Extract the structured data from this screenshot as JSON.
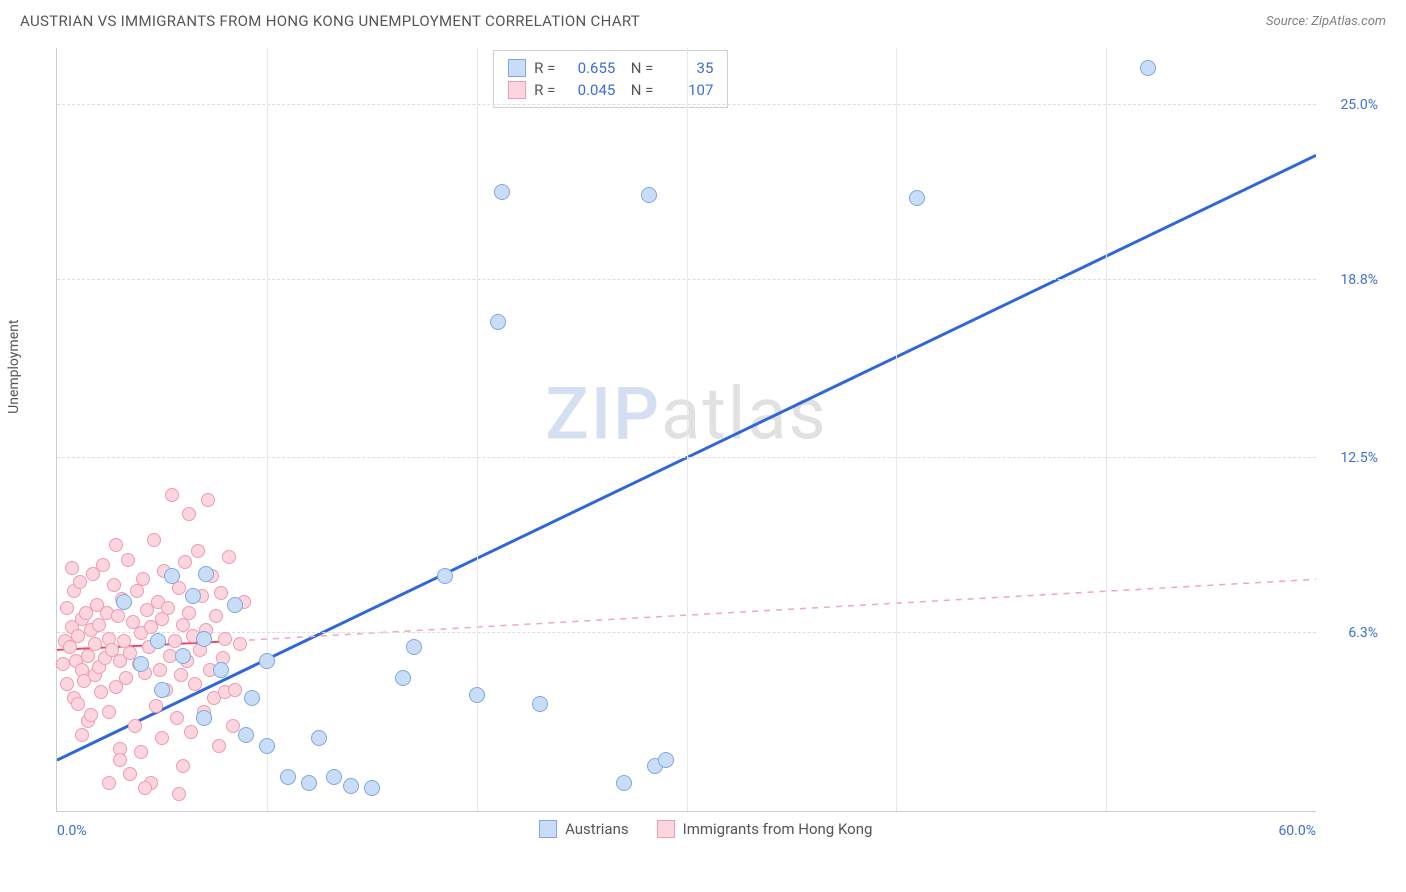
{
  "header": {
    "title": "AUSTRIAN VS IMMIGRANTS FROM HONG KONG UNEMPLOYMENT CORRELATION CHART",
    "source": "Source: ZipAtlas.com"
  },
  "y_axis_label": "Unemployment",
  "watermark": {
    "part1": "ZIP",
    "part2": "atlas"
  },
  "chart": {
    "type": "scatter",
    "background_color": "#ffffff",
    "grid_color": "#dddddd",
    "xlim": [
      0,
      60
    ],
    "ylim": [
      0,
      27
    ],
    "x_ticks": [
      {
        "v": 0,
        "label": "0.0%",
        "align": "left"
      },
      {
        "v": 60,
        "label": "60.0%",
        "align": "right"
      }
    ],
    "x_minor_ticks": [
      10,
      20,
      30,
      40,
      50
    ],
    "y_ticks": [
      {
        "v": 6.3,
        "label": "6.3%"
      },
      {
        "v": 12.5,
        "label": "12.5%"
      },
      {
        "v": 18.8,
        "label": "18.8%"
      },
      {
        "v": 25.0,
        "label": "25.0%"
      }
    ],
    "series": [
      {
        "id": "austrians",
        "label": "Austrians",
        "marker_fill": "#c9ddf6",
        "marker_stroke": "#7ca9e6",
        "marker_radius": 8,
        "trend": {
          "style": "solid",
          "color": "#2f66d8",
          "width": 3,
          "x1": 0,
          "y1": 1.8,
          "x2": 60,
          "y2": 23.2,
          "dashed_extend": false
        },
        "stats": {
          "R": "0.655",
          "N": "35"
        },
        "points": [
          [
            3.2,
            7.4
          ],
          [
            4.0,
            5.2
          ],
          [
            4.8,
            6.0
          ],
          [
            5.0,
            4.3
          ],
          [
            5.5,
            8.3
          ],
          [
            6.0,
            5.5
          ],
          [
            6.5,
            7.6
          ],
          [
            7.0,
            6.1
          ],
          [
            7.1,
            8.4
          ],
          [
            7.8,
            5.0
          ],
          [
            8.5,
            7.3
          ],
          [
            9.0,
            2.7
          ],
          [
            9.3,
            4.0
          ],
          [
            10.0,
            5.3
          ],
          [
            10.0,
            2.3
          ],
          [
            11.0,
            1.2
          ],
          [
            12.0,
            1.0
          ],
          [
            12.5,
            2.6
          ],
          [
            13.2,
            1.2
          ],
          [
            14.0,
            0.9
          ],
          [
            15.0,
            0.8
          ],
          [
            16.5,
            4.7
          ],
          [
            17.0,
            5.8
          ],
          [
            18.5,
            8.3
          ],
          [
            20.0,
            4.1
          ],
          [
            21.0,
            17.3
          ],
          [
            21.2,
            21.9
          ],
          [
            23.0,
            3.8
          ],
          [
            27.0,
            1.0
          ],
          [
            28.2,
            21.8
          ],
          [
            28.5,
            1.6
          ],
          [
            29.0,
            1.8
          ],
          [
            41.0,
            21.7
          ],
          [
            52.0,
            26.3
          ],
          [
            7.0,
            3.3
          ]
        ]
      },
      {
        "id": "hong_kong",
        "label": "Immigrants from Hong Kong",
        "marker_fill": "#fbd6de",
        "marker_stroke": "#f39bb0",
        "marker_radius": 7,
        "trend": {
          "style": "solid_then_dashed",
          "color": "#e74a6d",
          "width": 2,
          "x1": 0,
          "y1": 5.7,
          "x2": 8,
          "y2": 6.0,
          "dash_color": "#f4a6b6",
          "x3": 60,
          "y3": 8.2
        },
        "stats": {
          "R": "0.045",
          "N": "107"
        },
        "points": [
          [
            0.3,
            5.2
          ],
          [
            0.4,
            6.0
          ],
          [
            0.5,
            4.5
          ],
          [
            0.5,
            7.2
          ],
          [
            0.6,
            5.8
          ],
          [
            0.7,
            6.5
          ],
          [
            0.8,
            4.0
          ],
          [
            0.8,
            7.8
          ],
          [
            0.9,
            5.3
          ],
          [
            1.0,
            6.2
          ],
          [
            1.0,
            3.8
          ],
          [
            1.1,
            8.1
          ],
          [
            1.2,
            5.0
          ],
          [
            1.2,
            6.8
          ],
          [
            1.3,
            4.6
          ],
          [
            1.4,
            7.0
          ],
          [
            1.5,
            5.5
          ],
          [
            1.5,
            3.2
          ],
          [
            1.6,
            6.4
          ],
          [
            1.7,
            8.4
          ],
          [
            1.8,
            4.8
          ],
          [
            1.8,
            5.9
          ],
          [
            1.9,
            7.3
          ],
          [
            2.0,
            5.1
          ],
          [
            2.0,
            6.6
          ],
          [
            2.1,
            4.2
          ],
          [
            2.2,
            8.7
          ],
          [
            2.3,
            5.4
          ],
          [
            2.4,
            7.0
          ],
          [
            2.5,
            3.5
          ],
          [
            2.5,
            6.1
          ],
          [
            2.6,
            5.7
          ],
          [
            2.7,
            8.0
          ],
          [
            2.8,
            4.4
          ],
          [
            2.9,
            6.9
          ],
          [
            3.0,
            5.3
          ],
          [
            3.0,
            2.2
          ],
          [
            3.1,
            7.5
          ],
          [
            3.2,
            6.0
          ],
          [
            3.3,
            4.7
          ],
          [
            3.4,
            8.9
          ],
          [
            3.5,
            5.6
          ],
          [
            3.5,
            1.3
          ],
          [
            3.6,
            6.7
          ],
          [
            3.7,
            3.0
          ],
          [
            3.8,
            7.8
          ],
          [
            3.9,
            5.2
          ],
          [
            4.0,
            6.3
          ],
          [
            4.0,
            2.1
          ],
          [
            4.1,
            8.2
          ],
          [
            4.2,
            4.9
          ],
          [
            4.3,
            7.1
          ],
          [
            4.4,
            5.8
          ],
          [
            4.5,
            1.0
          ],
          [
            4.5,
            6.5
          ],
          [
            4.6,
            9.6
          ],
          [
            4.7,
            3.7
          ],
          [
            4.8,
            7.4
          ],
          [
            4.9,
            5.0
          ],
          [
            5.0,
            6.8
          ],
          [
            5.0,
            2.6
          ],
          [
            5.1,
            8.5
          ],
          [
            5.2,
            4.3
          ],
          [
            5.3,
            7.2
          ],
          [
            5.4,
            5.5
          ],
          [
            5.5,
            11.2
          ],
          [
            5.6,
            6.0
          ],
          [
            5.7,
            3.3
          ],
          [
            5.8,
            7.9
          ],
          [
            5.9,
            4.8
          ],
          [
            6.0,
            6.6
          ],
          [
            6.0,
            1.6
          ],
          [
            6.1,
            8.8
          ],
          [
            6.2,
            5.3
          ],
          [
            6.3,
            7.0
          ],
          [
            6.4,
            2.8
          ],
          [
            6.5,
            6.2
          ],
          [
            6.6,
            4.5
          ],
          [
            6.7,
            9.2
          ],
          [
            6.8,
            5.7
          ],
          [
            6.9,
            7.6
          ],
          [
            7.0,
            3.5
          ],
          [
            7.1,
            6.4
          ],
          [
            7.2,
            11.0
          ],
          [
            7.3,
            5.0
          ],
          [
            7.4,
            8.3
          ],
          [
            7.5,
            4.0
          ],
          [
            7.6,
            6.9
          ],
          [
            7.7,
            2.3
          ],
          [
            7.8,
            7.7
          ],
          [
            7.9,
            5.4
          ],
          [
            8.0,
            6.1
          ],
          [
            8.0,
            4.2
          ],
          [
            8.2,
            9.0
          ],
          [
            8.4,
            3.0
          ],
          [
            8.5,
            4.3
          ],
          [
            8.7,
            5.9
          ],
          [
            8.9,
            7.4
          ],
          [
            3.0,
            1.8
          ],
          [
            2.5,
            1.0
          ],
          [
            4.2,
            0.8
          ],
          [
            5.8,
            0.6
          ],
          [
            6.3,
            10.5
          ],
          [
            1.2,
            2.7
          ],
          [
            2.8,
            9.4
          ],
          [
            1.6,
            3.4
          ],
          [
            0.7,
            8.6
          ]
        ]
      }
    ]
  }
}
